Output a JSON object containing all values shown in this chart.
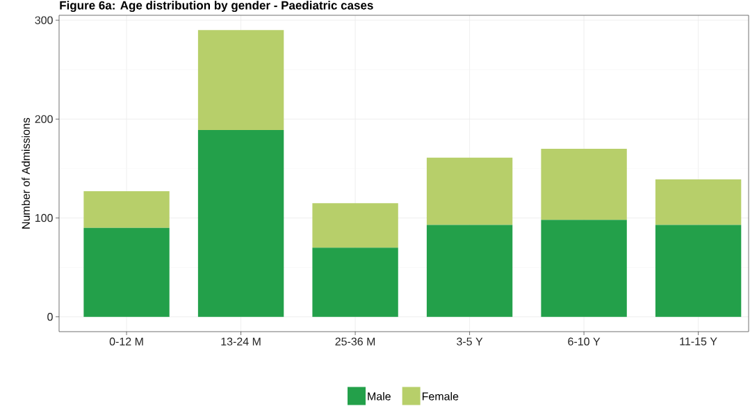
{
  "chart_data": {
    "type": "bar",
    "title": "Figure 6a: Age distribution by gender - Paediatric cases",
    "ylabel": "Number of Admissions",
    "categories": [
      "0-12 M",
      "13-24 M",
      "25-36 M",
      "3-5 Y",
      "6-10 Y",
      "11-15 Y"
    ],
    "series": [
      {
        "name": "Male",
        "color": "#23a04a",
        "values": [
          90,
          189,
          70,
          93,
          98,
          93
        ]
      },
      {
        "name": "Female",
        "color": "#b7cf6a",
        "values": [
          37,
          101,
          45,
          68,
          72,
          46
        ]
      }
    ],
    "stacked": true,
    "ylim": [
      -15,
      305
    ],
    "yticks": [
      0,
      100,
      200,
      300
    ],
    "grid": true,
    "legend": "bottom"
  }
}
